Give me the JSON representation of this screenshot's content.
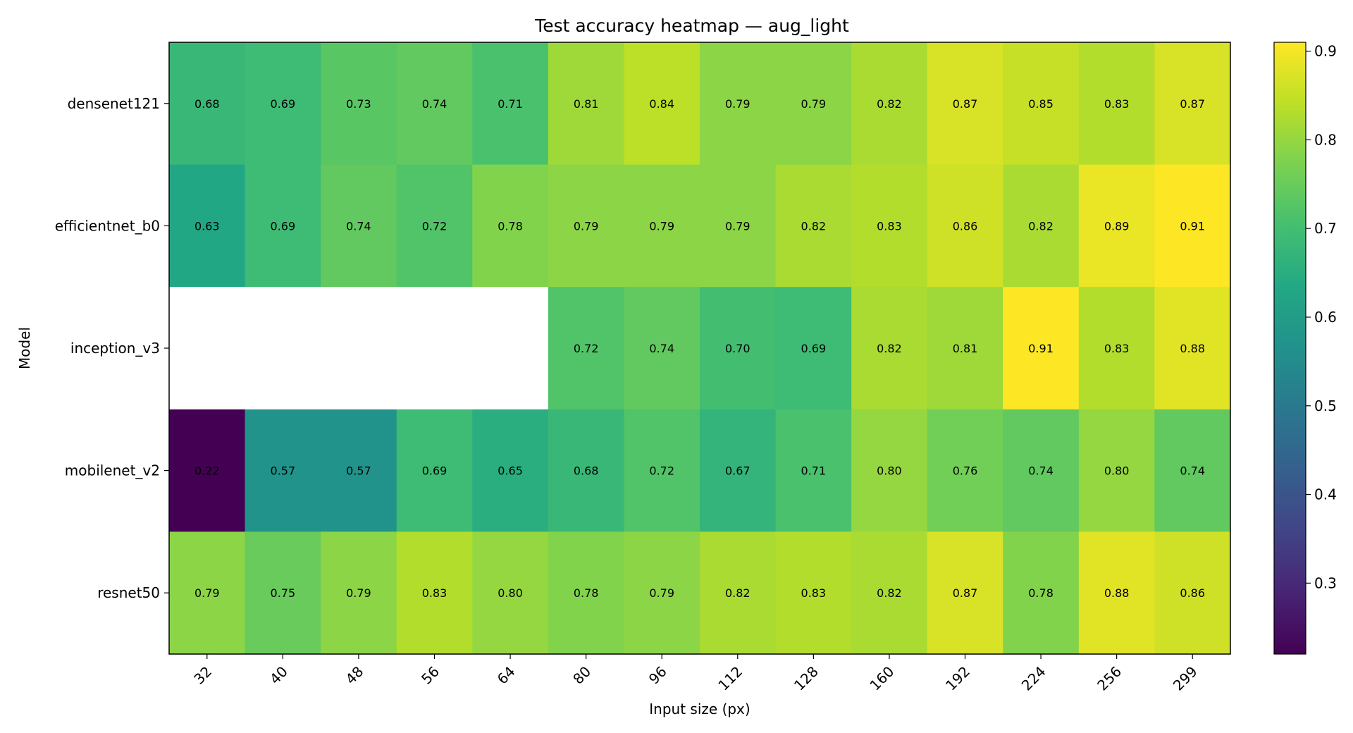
{
  "chart_data": {
    "type": "heatmap",
    "title": "Test accuracy heatmap — aug_light",
    "xlabel": "Input size (px)",
    "ylabel": "Model",
    "x_categories": [
      "32",
      "40",
      "48",
      "56",
      "64",
      "80",
      "96",
      "112",
      "128",
      "160",
      "192",
      "224",
      "256",
      "299"
    ],
    "y_categories": [
      "densenet121",
      "efficientnet_b0",
      "inception_v3",
      "mobilenet_v2",
      "resnet50"
    ],
    "values": [
      [
        0.68,
        0.69,
        0.73,
        0.74,
        0.71,
        0.81,
        0.84,
        0.79,
        0.79,
        0.82,
        0.87,
        0.85,
        0.83,
        0.87
      ],
      [
        0.63,
        0.69,
        0.74,
        0.72,
        0.78,
        0.79,
        0.79,
        0.79,
        0.82,
        0.83,
        0.86,
        0.82,
        0.89,
        0.91
      ],
      [
        null,
        null,
        null,
        null,
        null,
        0.72,
        0.74,
        0.7,
        0.69,
        0.82,
        0.81,
        0.91,
        0.83,
        0.88
      ],
      [
        0.22,
        0.57,
        0.57,
        0.69,
        0.65,
        0.68,
        0.72,
        0.67,
        0.71,
        0.8,
        0.76,
        0.74,
        0.8,
        0.74
      ],
      [
        0.79,
        0.75,
        0.79,
        0.83,
        0.8,
        0.78,
        0.79,
        0.82,
        0.83,
        0.82,
        0.87,
        0.78,
        0.88,
        0.86
      ]
    ],
    "colormap": "viridis",
    "vmin": 0.22,
    "vmax": 0.91,
    "colorbar_ticks": [
      0.3,
      0.4,
      0.5,
      0.6,
      0.7,
      0.8,
      0.9
    ],
    "colorbar_tick_labels": [
      "0.3",
      "0.4",
      "0.5",
      "0.6",
      "0.7",
      "0.8",
      "0.9"
    ],
    "missing_color": "#ffffff",
    "legend": "colorbar-right"
  }
}
